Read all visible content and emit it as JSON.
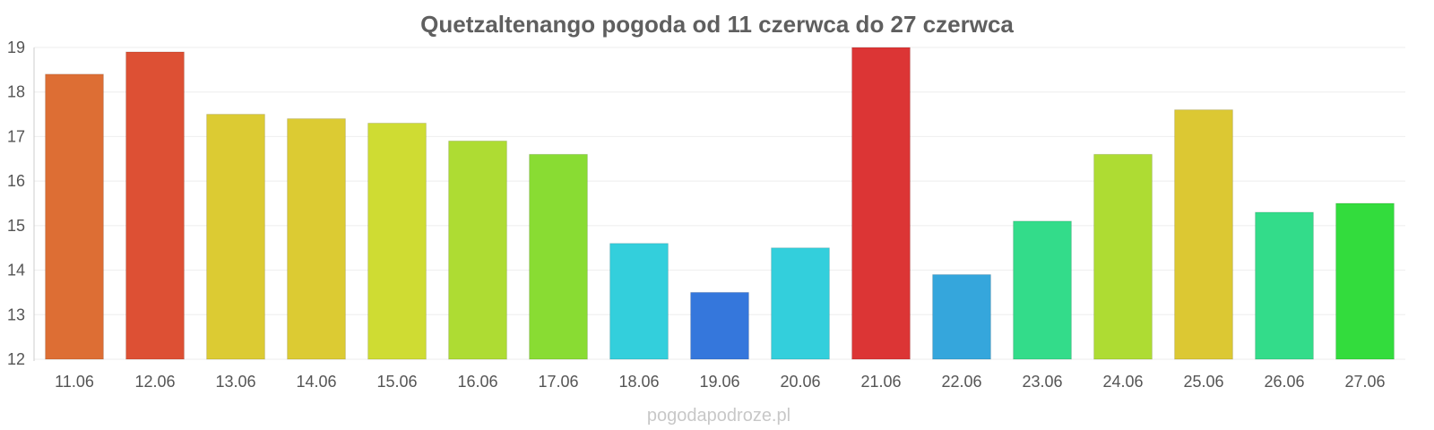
{
  "chart_data": {
    "type": "bar",
    "title": "Quetzaltenango pogoda od 11 czerwca do 27 czerwca",
    "xlabel": "",
    "ylabel": "",
    "ylim": [
      12,
      19
    ],
    "yticks": [
      "12",
      "13",
      "14",
      "15",
      "16",
      "17",
      "18",
      "19"
    ],
    "grid": true,
    "categories": [
      "11.06",
      "12.06",
      "13.06",
      "14.06",
      "15.06",
      "16.06",
      "17.06",
      "18.06",
      "19.06",
      "20.06",
      "21.06",
      "22.06",
      "23.06",
      "24.06",
      "25.06",
      "26.06",
      "27.06"
    ],
    "values": [
      18.4,
      18.9,
      17.5,
      17.4,
      17.3,
      16.9,
      16.6,
      14.6,
      13.5,
      14.5,
      19.0,
      13.9,
      15.1,
      16.6,
      17.6,
      15.3,
      15.5
    ],
    "colors": [
      "#dd6e34",
      "#dd5034",
      "#dccb33",
      "#dccb33",
      "#cfdc33",
      "#aedc33",
      "#89dc33",
      "#33cfdc",
      "#3577dc",
      "#33cfdc",
      "#dc3535",
      "#35a6dc",
      "#33dc8a",
      "#aedc33",
      "#dcc833",
      "#33dc8a",
      "#33dc3d"
    ]
  },
  "watermark": "pogodapodroze.pl"
}
